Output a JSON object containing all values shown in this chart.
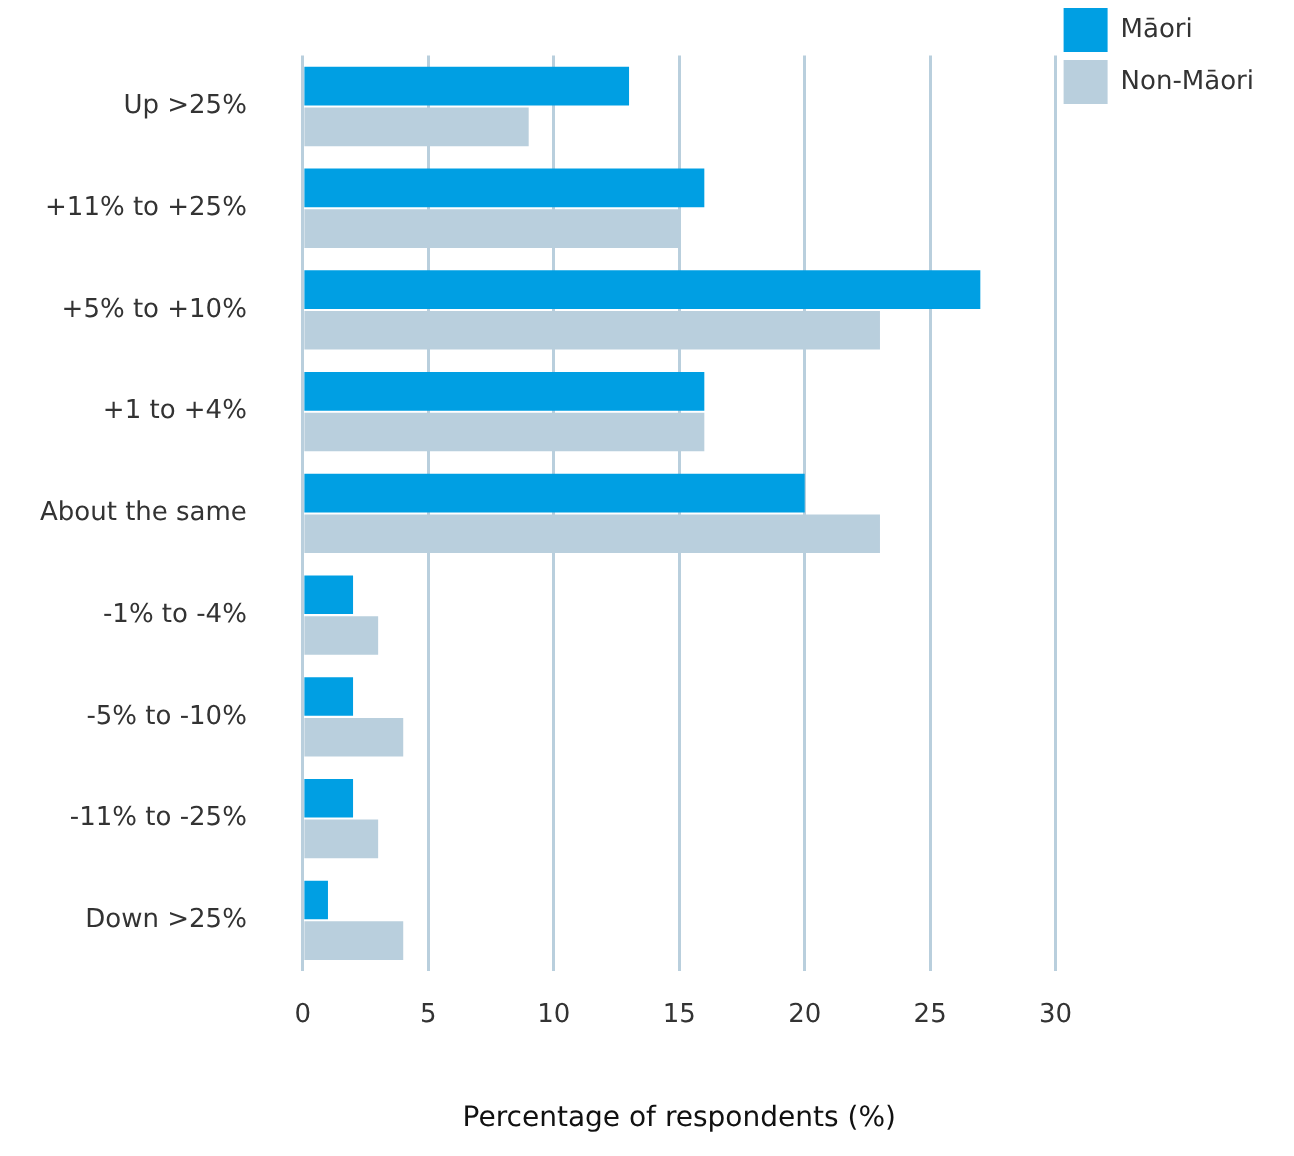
{
  "chart_data": {
    "type": "bar",
    "orientation": "horizontal",
    "xlabel": "Percentage of respondents (%)",
    "categories": [
      "Up >25%",
      "+11% to +25%",
      "+5% to +10%",
      "+1 to +4%",
      "About the same",
      "-1% to -4%",
      "-5% to -10%",
      "-11% to -25%",
      "Down >25%"
    ],
    "series": [
      {
        "name": "Māori",
        "color": "#009fe3",
        "values": [
          13,
          16,
          27,
          16,
          20,
          2,
          2,
          2,
          1
        ]
      },
      {
        "name": "Non-Māori",
        "color": "#b9cfdd",
        "values": [
          9,
          15,
          23,
          16,
          23,
          3,
          4,
          3,
          4
        ]
      }
    ],
    "xlim": [
      0,
      30
    ],
    "xticks": [
      0,
      5,
      10,
      15,
      20,
      25,
      30
    ],
    "grid": "x",
    "legend": "top right"
  }
}
